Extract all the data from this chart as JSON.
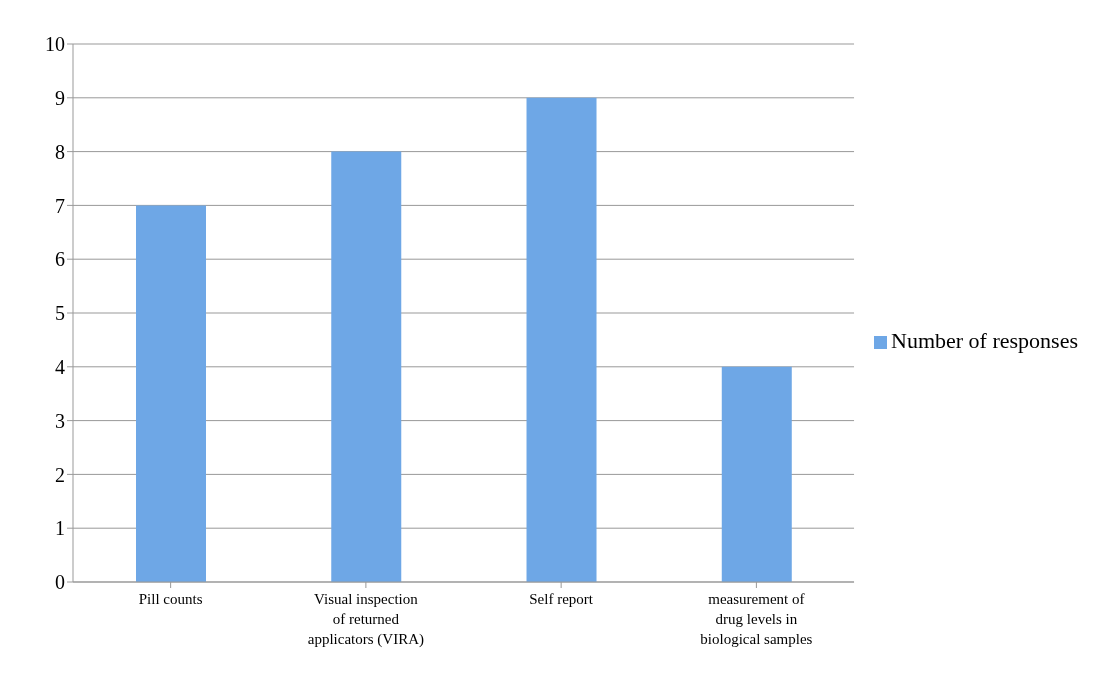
{
  "chart_data": {
    "type": "bar",
    "categories": [
      "Pill counts",
      "Visual inspection of returned applicators (VIRA)",
      "Self report",
      "measurement of drug levels in biological samples"
    ],
    "series": [
      {
        "name": "Number of responses",
        "color": "#6ea7e6",
        "values": [
          7,
          8,
          9,
          4
        ]
      }
    ],
    "ylim": [
      0,
      10
    ],
    "yticks": [
      0,
      1,
      2,
      3,
      4,
      5,
      6,
      7,
      8,
      9,
      10
    ],
    "grid": "y",
    "legend": "right"
  }
}
